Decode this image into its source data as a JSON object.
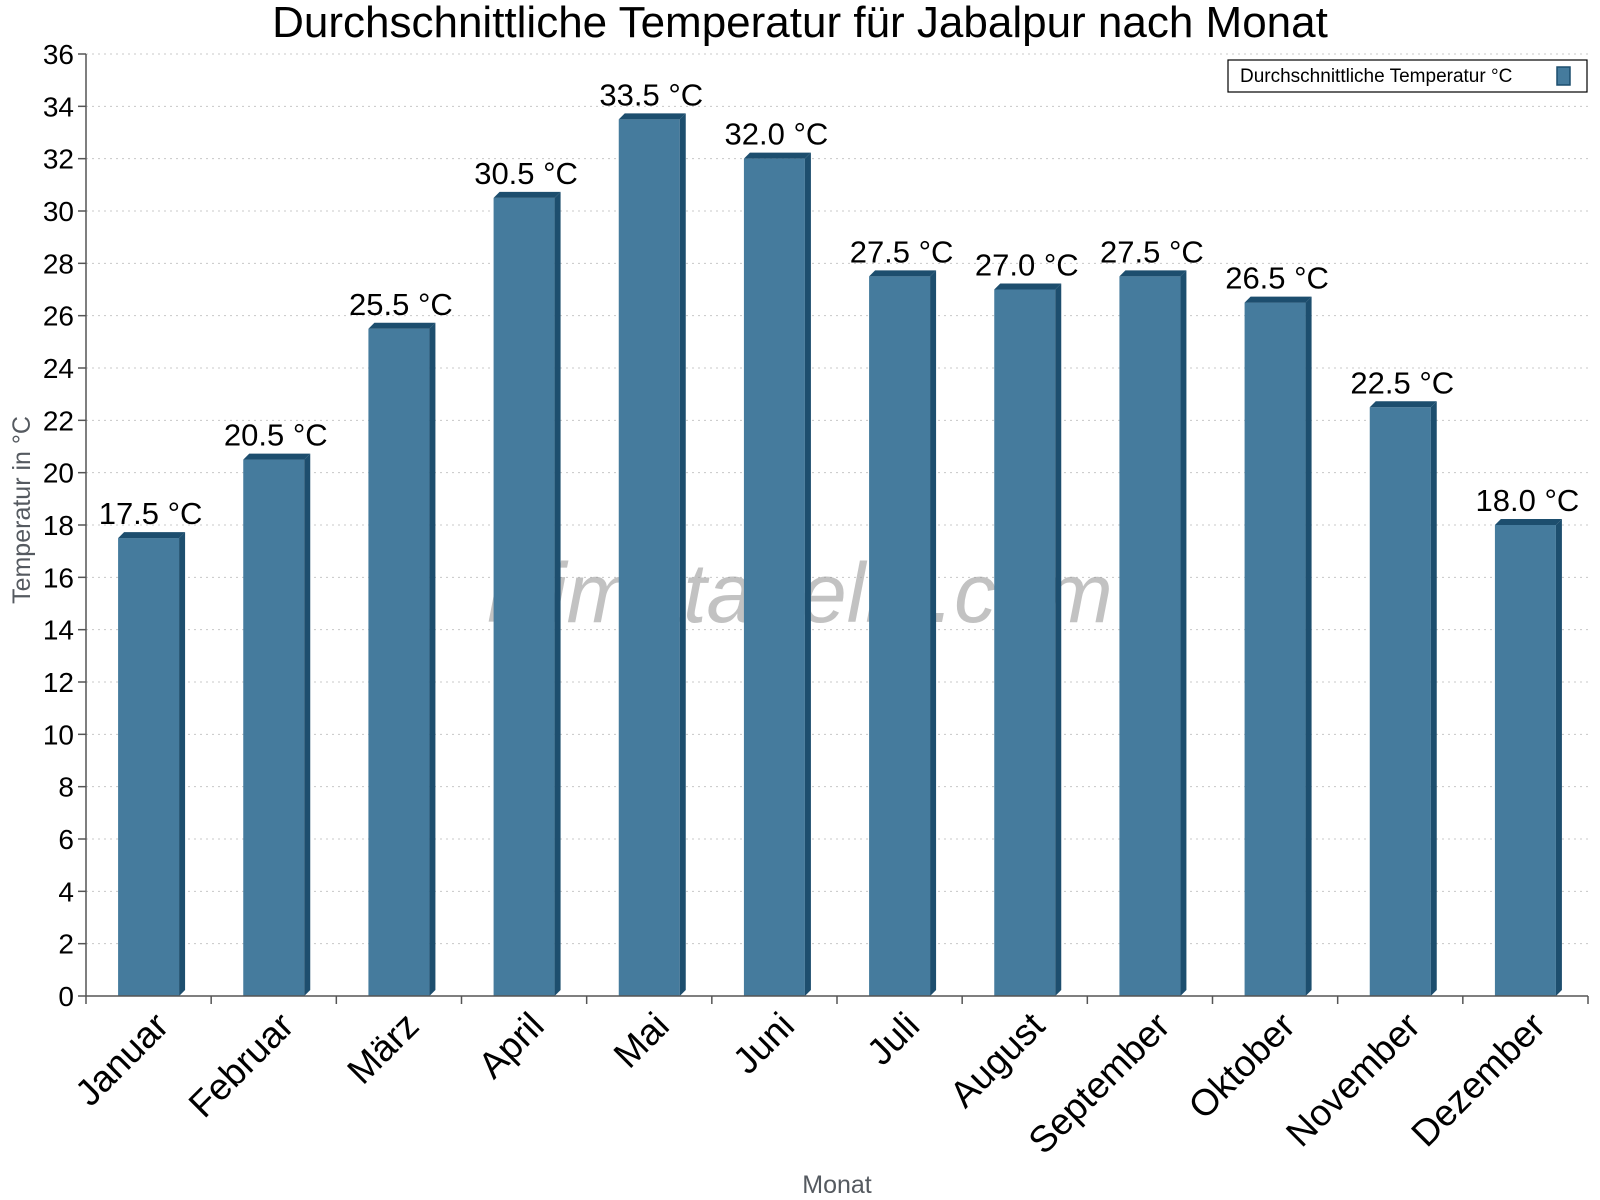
{
  "chart_data": {
    "type": "bar",
    "title": "Durchschnittliche Temperatur für Jabalpur nach Monat",
    "xlabel": "Monat",
    "ylabel": "Temperatur in °C",
    "categories": [
      "Januar",
      "Februar",
      "März",
      "April",
      "Mai",
      "Juni",
      "Juli",
      "August",
      "September",
      "Oktober",
      "November",
      "Dezember"
    ],
    "series": [
      {
        "name": "Durchschnittliche Temperatur °C",
        "values": [
          17.5,
          20.5,
          25.5,
          30.5,
          33.5,
          32.0,
          27.5,
          27.0,
          27.5,
          26.5,
          22.5,
          18.0
        ],
        "labels": [
          "17.5 °C",
          "20.5 °C",
          "25.5 °C",
          "30.5 °C",
          "33.5 °C",
          "32.0 °C",
          "27.5 °C",
          "27.0 °C",
          "27.5 °C",
          "26.5 °C",
          "22.5 °C",
          "18.0 °C"
        ],
        "color": "#457b9d"
      }
    ],
    "ylim": [
      0,
      36
    ],
    "yticks": [
      0,
      2,
      4,
      6,
      8,
      10,
      12,
      14,
      16,
      18,
      20,
      22,
      24,
      26,
      28,
      30,
      32,
      34,
      36
    ],
    "grid": true,
    "legend_position": "top-right"
  },
  "watermark": "klimatabelle.com",
  "colors": {
    "bar_fill": "#457b9d",
    "bar_edge": "#1d4e6e",
    "gridline": "#c8c8c8",
    "axis": "#555555"
  }
}
